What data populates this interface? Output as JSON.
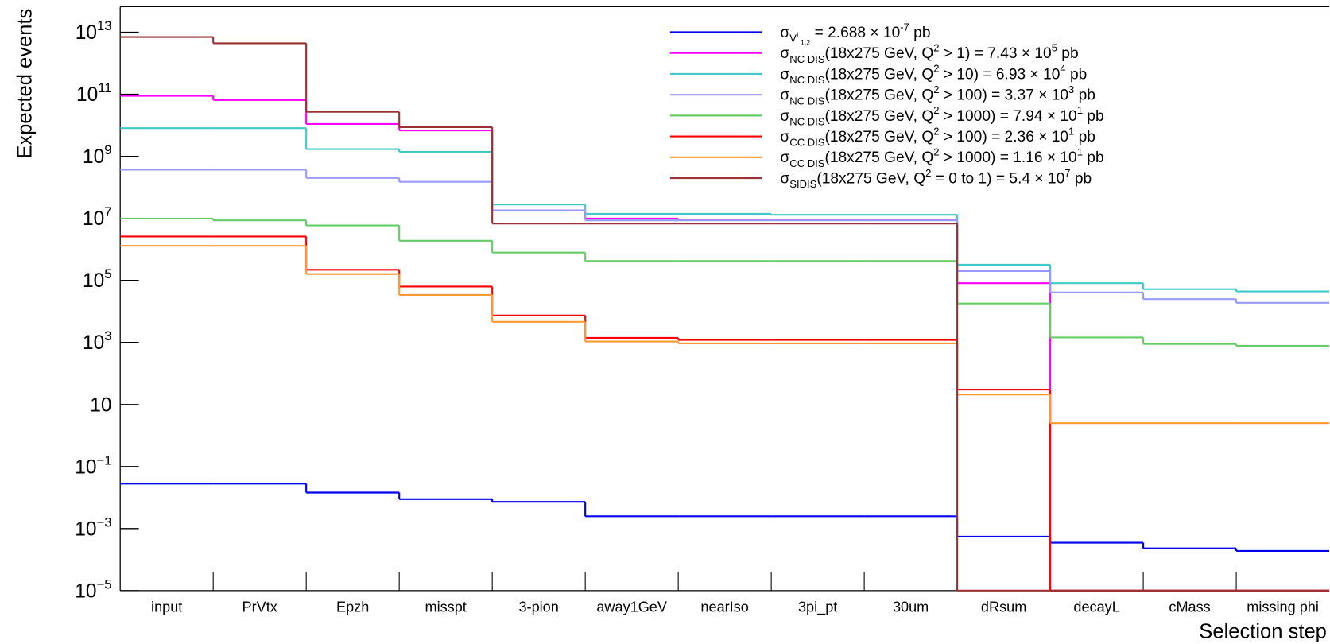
{
  "chart_data": {
    "type": "step",
    "x_label": "Selection step",
    "y_label": "Expected events",
    "log_y": true,
    "ylim": [
      1e-05,
      66000000000000.0
    ],
    "yticks": [
      {
        "value": 1e-05,
        "label": "10^{−5}"
      },
      {
        "value": 0.001,
        "label": "10^{−3}"
      },
      {
        "value": 0.1,
        "label": "10^{−1}"
      },
      10,
      {
        "value": 1000.0,
        "label": "10^{3}"
      },
      {
        "value": 100000.0,
        "label": "10^{5}"
      },
      {
        "value": 10000000.0,
        "label": "10^{7}"
      },
      {
        "value": 1000000000.0,
        "label": "10^{9}"
      },
      {
        "value": 100000000000.0,
        "label": "10^{11}"
      },
      {
        "value": 10000000000000.0,
        "label": "10^{13}"
      }
    ],
    "categories": [
      "input",
      "PrVtx",
      "Epzh",
      "misspt",
      "3-pion",
      "away1GeV",
      "nearIso",
      "3pi_pt",
      "30um",
      "dRsum",
      "decayL",
      "cMass",
      "missing phi"
    ],
    "legend": "upper right",
    "series": [
      {
        "name": "σ_{V^{L}_{1.2}} = 2.688 × 10^{-7} pb",
        "color": "#0000ee",
        "values": [
          0.028,
          0.028,
          0.0145,
          0.0089,
          0.0073,
          0.0025,
          0.0025,
          0.0025,
          0.0025,
          0.00055,
          0.00035,
          0.00023,
          0.00019
        ]
      },
      {
        "name": "σ_{NC DIS}(18x275 GeV, Q^{2} > 1) = 7.43 × 10^{5} pb",
        "color": "#ff00ff",
        "values": [
          89000000000.0,
          65000000000.0,
          11000000000.0,
          6800000000.0,
          18000000.0,
          9800000.0,
          9000000.0,
          9000000.0,
          9000000.0,
          81000.0,
          0,
          0,
          0
        ]
      },
      {
        "name": "σ_{NC DIS}(18x275 GeV, Q^{2} > 10) = 6.93 × 10^{4} pb",
        "color": "#3fc9c9",
        "values": [
          8100000000.0,
          8100000000.0,
          1700000000.0,
          1400000000.0,
          28000000.0,
          14000000.0,
          14000000.0,
          13000000.0,
          13000000.0,
          320000.0,
          81000.0,
          52000.0,
          44000.0
        ]
      },
      {
        "name": "σ_{NC DIS}(18x275 GeV, Q^{2} > 100) = 3.37 × 10^{3} pb",
        "color": "#9999ff",
        "values": [
          370000000.0,
          370000000.0,
          200000000.0,
          150000000.0,
          18000000.0,
          8600000.0,
          8600000.0,
          8600000.0,
          8600000.0,
          200000.0,
          41000.0,
          25000.0,
          19000.0
        ]
      },
      {
        "name": "σ_{NC DIS}(18x275 GeV, Q^{2} > 1000) = 7.94 × 10^{1} pb",
        "color": "#66cc66",
        "values": [
          9800000.0,
          8600000.0,
          5900000.0,
          1900000.0,
          790000.0,
          420000.0,
          420000.0,
          420000.0,
          420000.0,
          18000.0,
          1450,
          890,
          780
        ]
      },
      {
        "name": "σ_{CC DIS}(18x275 GeV, Q^{2} > 100) = 2.36 × 10^{1} pb",
        "color": "#ff0000",
        "values": [
          2600000.0,
          2600000.0,
          220000.0,
          63000.0,
          7400,
          1400,
          1200,
          1200,
          1200,
          30,
          0,
          0,
          0
        ]
      },
      {
        "name": "σ_{CC DIS}(18x275 GeV, Q^{2} > 1000) = 1.16 × 10^{1} pb",
        "color": "#ff9933",
        "values": [
          1300000.0,
          1300000.0,
          160000.0,
          34000.0,
          4600,
          1070,
          930,
          930,
          930,
          21,
          2.5,
          2.5,
          2.5
        ]
      },
      {
        "name": "σ_{SIDIS}(18x275 GeV, Q^{2} = 0 to 1) = 5.4 × 10^{7} pb",
        "color": "#993333",
        "values": [
          7000000000000.0,
          4400000000000.0,
          27000000000.0,
          8700000000.0,
          6800000.0,
          6800000.0,
          6800000.0,
          6800000.0,
          6800000.0,
          0,
          0,
          0,
          0
        ]
      }
    ]
  }
}
